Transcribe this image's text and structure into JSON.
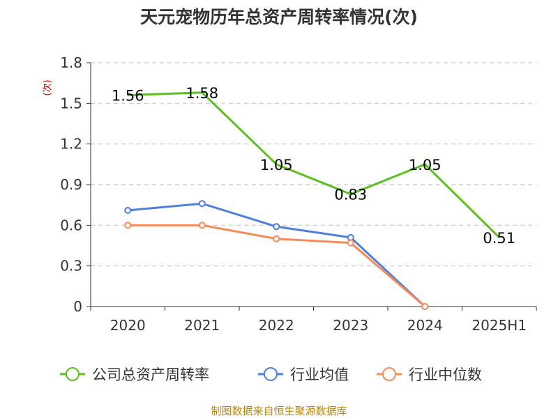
{
  "chart_data": {
    "type": "line",
    "title": "天元宠物历年总资产周转率情况(次)",
    "ylabel": "(次)",
    "xlabel": "",
    "categories": [
      "2020",
      "2021",
      "2022",
      "2023",
      "2024",
      "2025H1"
    ],
    "ylim": [
      0,
      1.8
    ],
    "yticks": [
      "0",
      "0.3",
      "0.6",
      "0.9",
      "1.2",
      "1.5",
      "1.8"
    ],
    "grid": true,
    "legend_position": "bottom",
    "series": [
      {
        "name": "公司总资产周转率",
        "color": "#5bbf1f",
        "values": [
          1.56,
          1.58,
          1.05,
          0.83,
          1.05,
          0.51
        ],
        "labels": [
          "1.56",
          "1.58",
          "1.05",
          "0.83",
          "1.05",
          "0.51"
        ],
        "markers": false
      },
      {
        "name": "行业均值",
        "color": "#4f7fdc",
        "values": [
          0.71,
          0.76,
          0.59,
          0.51,
          0.0,
          null
        ],
        "markers": true
      },
      {
        "name": "行业中位数",
        "color": "#f68b5a",
        "values": [
          0.6,
          0.6,
          0.5,
          0.47,
          0.0,
          null
        ],
        "markers": true
      }
    ],
    "source": "制图数据来自恒生聚源数据库"
  }
}
